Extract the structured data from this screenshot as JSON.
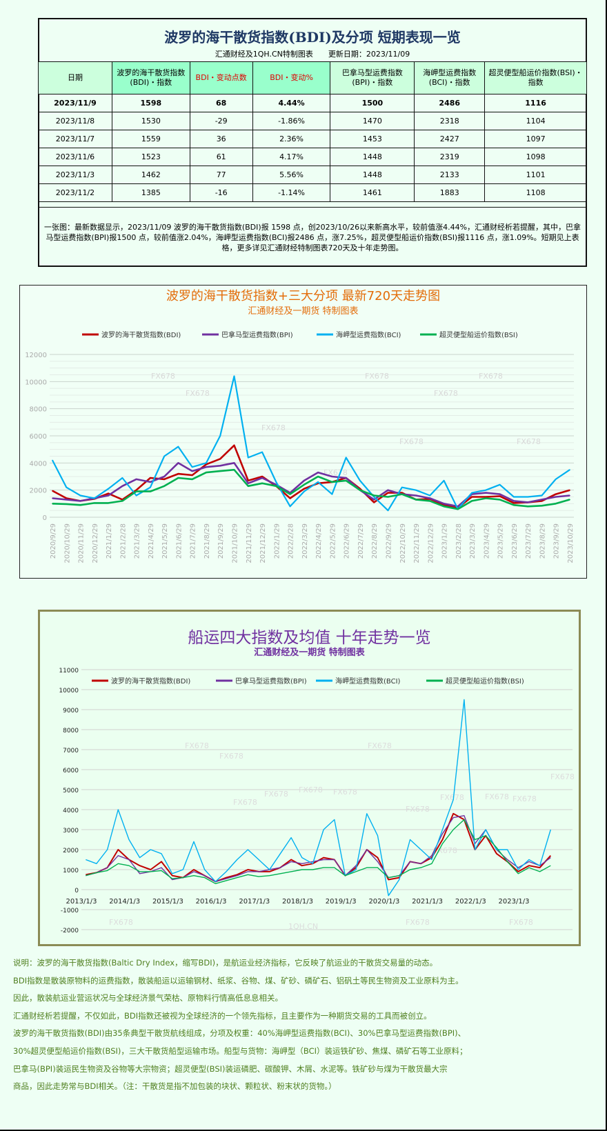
{
  "table": {
    "title": "波罗的海干散货指数(BDI)及分项 短期表现一览",
    "subtitle": "汇通财经及1QH.CN特制图表　　更新日期：2023/11/09",
    "headers": [
      "日期",
      "波罗的海干散货指数(BDI)・指数",
      "BDI・变动点数",
      "BDI・变动%",
      "巴拿马型运费指数(BPI)・指数",
      "海岬型运费指数(BCI)・指数",
      "超灵便型船运价指数(BSI)・指数"
    ],
    "rows": [
      [
        "2023/11/9",
        "1598",
        "68",
        "4.44%",
        "1500",
        "2486",
        "1116"
      ],
      [
        "2023/11/8",
        "1530",
        "-29",
        "-1.86%",
        "1470",
        "2318",
        "1104"
      ],
      [
        "2023/11/7",
        "1559",
        "36",
        "2.36%",
        "1453",
        "2427",
        "1097"
      ],
      [
        "2023/11/6",
        "1523",
        "61",
        "4.17%",
        "1448",
        "2319",
        "1098"
      ],
      [
        "2023/11/3",
        "1462",
        "77",
        "5.56%",
        "1448",
        "2133",
        "1101"
      ],
      [
        "2023/11/2",
        "1385",
        "-16",
        "-1.14%",
        "1461",
        "1883",
        "1108"
      ]
    ],
    "note": "一张图：最新数据显示，2023/11/09 波罗的海干散货指数(BDI)报 1598 点，创2023/10/26以来新高水平，较前值涨4.44%，汇通财经析若提醒，其中，巴拿马型运费指数(BPI)报1500 点，较前值涨2.04%，海岬型运费指数(BCI)报2486 点，涨7.25%，超灵便型船运价指数(BSI)报1116 点，涨1.09%。短期见上表格，更多详见汇通财经特制图表720天及十年走势图。"
  },
  "colors": {
    "BDI": "#c00000",
    "BPI": "#7030a0",
    "BCI": "#00b0f0",
    "BSI": "#00b050"
  },
  "watermark": "FX678",
  "chart_data": [
    {
      "type": "line",
      "title": "波罗的海干散货指数+三大分项  最新720天走势图",
      "subtitle": "汇通财经及一期货  特制图表",
      "ylim": [
        0,
        12000
      ],
      "grid": true,
      "legend": "top",
      "yticks": [
        "0",
        "2000",
        "4000",
        "6000",
        "8000",
        "10000",
        "12000"
      ],
      "categories": [
        "2020/9/29",
        "2020/10/29",
        "2020/11/29",
        "2020/12/29",
        "2021/1/29",
        "2021/2/28",
        "2021/3/29",
        "2021/4/29",
        "2021/5/29",
        "2021/6/29",
        "2021/7/29",
        "2021/8/29",
        "2021/9/29",
        "2021/10/29",
        "2021/11/29",
        "2021/12/29",
        "2022/1/29",
        "2022/2/28",
        "2022/3/29",
        "2022/4/29",
        "2022/5/29",
        "2022/6/29",
        "2022/7/29",
        "2022/8/29",
        "2022/9/29",
        "2022/10/29",
        "2022/11/29",
        "2022/12/29",
        "2023/1/29",
        "2023/2/28",
        "2023/3/29",
        "2023/4/29",
        "2023/5/29",
        "2023/6/29",
        "2023/7/29",
        "2023/8/29",
        "2023/9/29",
        "2023/10/29"
      ],
      "series": [
        {
          "name": "波罗的海干散货指数(BDI)",
          "key": "BDI",
          "values": [
            1950,
            1400,
            1200,
            1350,
            1750,
            1300,
            2000,
            2900,
            2800,
            3200,
            3100,
            3900,
            4300,
            5300,
            2700,
            3000,
            2300,
            1400,
            2100,
            2500,
            2600,
            2900,
            2100,
            1100,
            1800,
            1800,
            1300,
            1350,
            900,
            700,
            1500,
            1500,
            1550,
            1050,
            1100,
            1200,
            1700,
            2000
          ]
        },
        {
          "name": "巴拿马型运费指数(BPI)",
          "key": "BPI",
          "values": [
            1400,
            1300,
            1200,
            1400,
            1600,
            2300,
            2800,
            2600,
            3000,
            4000,
            3400,
            3700,
            3800,
            4000,
            2500,
            2900,
            2400,
            1800,
            2700,
            3300,
            3000,
            2900,
            2000,
            1300,
            2000,
            1700,
            1600,
            1400,
            1000,
            800,
            1700,
            1800,
            1700,
            1200,
            1100,
            1300,
            1500,
            1600
          ]
        },
        {
          "name": "海岬型运费指数(BCI)",
          "key": "BCI",
          "values": [
            4200,
            2200,
            1600,
            1400,
            2100,
            2900,
            1600,
            2200,
            4500,
            5200,
            3700,
            4000,
            6000,
            10400,
            4400,
            4800,
            2600,
            800,
            1900,
            2600,
            1700,
            4400,
            2700,
            1500,
            500,
            2200,
            2000,
            1600,
            2700,
            600,
            1800,
            2000,
            2400,
            1500,
            1500,
            1600,
            2800,
            3500
          ]
        },
        {
          "name": "超灵便型船运价指数(BSI)",
          "key": "BSI",
          "values": [
            1000,
            970,
            900,
            1050,
            1050,
            1200,
            1900,
            1900,
            2300,
            2900,
            2800,
            3300,
            3400,
            3500,
            2300,
            2500,
            2300,
            1700,
            2400,
            3000,
            2600,
            2700,
            2000,
            1600,
            1500,
            1700,
            1300,
            1200,
            800,
            600,
            1200,
            1400,
            1300,
            900,
            800,
            850,
            1000,
            1300
          ]
        }
      ]
    },
    {
      "type": "line",
      "title": "船运四大指数及均值 十年走势一览",
      "subtitle": "汇通财经及一期货 特制图表",
      "ylim": [
        -2000,
        11000
      ],
      "grid": true,
      "legend": "top",
      "watermark2": "1QH.CN",
      "yticks": [
        "-2000",
        "-1000",
        "0",
        "1000",
        "2000",
        "3000",
        "4000",
        "5000",
        "6000",
        "7000",
        "8000",
        "9000",
        "10000",
        "11000"
      ],
      "xticks": [
        "2013/1/3",
        "2014/1/3",
        "2015/1/3",
        "2016/1/3",
        "2017/1/3",
        "2018/1/3",
        "2019/1/3",
        "2020/1/3",
        "2021/1/3",
        "2022/1/3",
        "2023/1/3"
      ],
      "x_start": "2013/1",
      "x_step": "quarter",
      "series": [
        {
          "name": "波罗的海干散货指数(BDI)",
          "key": "BDI",
          "values": [
            750,
            850,
            1100,
            2000,
            1500,
            1200,
            1000,
            1400,
            700,
            600,
            1000,
            700,
            400,
            600,
            750,
            1000,
            900,
            900,
            1100,
            1500,
            1200,
            1300,
            1600,
            1500,
            700,
            1100,
            2000,
            1600,
            500,
            600,
            1400,
            1300,
            1600,
            2500,
            3800,
            3500,
            2000,
            2700,
            1800,
            1400,
            900,
            1200,
            1100,
            1700
          ]
        },
        {
          "name": "巴拿马型运费指数(BPI)",
          "key": "BPI",
          "values": [
            700,
            850,
            1100,
            1700,
            1500,
            800,
            900,
            1100,
            500,
            600,
            900,
            700,
            400,
            550,
            700,
            900,
            900,
            1000,
            1100,
            1400,
            1300,
            1400,
            1500,
            1500,
            700,
            1200,
            2000,
            1400,
            600,
            700,
            1400,
            1300,
            1700,
            2800,
            3600,
            3700,
            2300,
            3000,
            2000,
            1500,
            1100,
            1400,
            1200,
            1600
          ]
        },
        {
          "name": "海岬型运费指数(BCI)",
          "key": "BCI",
          "values": [
            1500,
            1300,
            2000,
            4000,
            2500,
            1600,
            2000,
            1800,
            800,
            1000,
            2400,
            1000,
            400,
            900,
            1500,
            2000,
            1500,
            1000,
            1800,
            2600,
            1600,
            1300,
            3000,
            3500,
            700,
            1000,
            3800,
            2700,
            -300,
            500,
            2500,
            2000,
            1500,
            3000,
            4500,
            9500,
            2000,
            3000,
            2000,
            2000,
            1000,
            1500,
            1200,
            3000
          ]
        },
        {
          "name": "超灵便型船运价指数(BSI)",
          "key": "BSI",
          "values": [
            700,
            850,
            950,
            1300,
            1200,
            900,
            900,
            950,
            550,
            600,
            700,
            600,
            300,
            450,
            600,
            750,
            650,
            700,
            800,
            900,
            1000,
            1000,
            1100,
            1100,
            700,
            900,
            1100,
            1100,
            600,
            700,
            1000,
            1100,
            1300,
            2300,
            3000,
            3500,
            2500,
            2700,
            2100,
            1400,
            800,
            1100,
            900,
            1200
          ]
        }
      ]
    }
  ],
  "description": [
    "说明：波罗的海干散货指数(Baltic Dry Index，缩写BDI)，是航运业经济指标，它反映了航运业的干散货交易量的动态。",
    "BDI指数是散装原物料的运费指数，散装船运以运输钢材、纸浆、谷物、煤、矿砂、磷矿石、铝矾土等民生物资及工业原料为主。",
    "因此，散装航运业营运状况与全球经济景气荣枯、原物料行情高低息息相关。",
    "汇通财经析若提醒，不仅如此，BDI指数还被视为全球经济的一个领先指标，且主要作为一种期货交易的工具而被创立。",
    "波罗的海干散货指数(BDI)由35条典型干散货航线组成，分项及权重：40%海岬型运费指数(BCI)、30%巴拿马型运费指数(BPI)、",
    "30%超灵便型船运价指数(BSI)，三大干散货船型运输市场。船型与货物：海岬型（BCI）装运铁矿砂、焦煤、磷矿石等工业原料；",
    "巴拿马(BPI)装运民生物资及谷物等大宗物资；超灵便型(BSI)装运磷肥、碳酸钾、木屑、水泥等。铁矿砂与煤为干散货最大宗",
    "商品，因此走势常与BDI相关。（注：干散货是指不加包装的块状、颗粒状、粉末状的货物。）"
  ]
}
